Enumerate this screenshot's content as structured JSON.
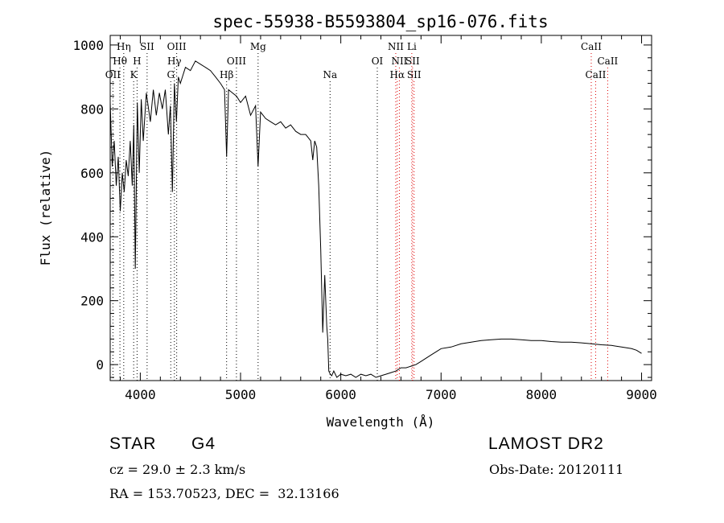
{
  "chart_data": {
    "type": "line",
    "title": "spec-55938-B5593804_sp16-076.fits",
    "xlabel": "Wavelength (Å)",
    "ylabel": "Flux (relative)",
    "xlim": [
      3700,
      9100
    ],
    "ylim": [
      -50,
      1030
    ],
    "x_ticks": [
      4000,
      5000,
      6000,
      7000,
      8000,
      9000
    ],
    "y_ticks": [
      0,
      200,
      400,
      600,
      800,
      1000
    ],
    "x_tick_labels": [
      "4000",
      "5000",
      "6000",
      "7000",
      "8000",
      "9000"
    ],
    "y_tick_labels": [
      "0",
      "200",
      "400",
      "600",
      "800",
      "1000"
    ],
    "grid": false,
    "series": [
      {
        "x": [
          3700,
          3720,
          3740,
          3760,
          3780,
          3800,
          3820,
          3840,
          3860,
          3880,
          3900,
          3920,
          3935,
          3950,
          3970,
          3990,
          4010,
          4030,
          4060,
          4100,
          4130,
          4160,
          4190,
          4220,
          4250,
          4280,
          4300,
          4320,
          4340,
          4360,
          4380,
          4400,
          4450,
          4500,
          4550,
          4600,
          4650,
          4700,
          4750,
          4800,
          4840,
          4861,
          4880,
          4920,
          4960,
          5000,
          5050,
          5100,
          5150,
          5175,
          5200,
          5250,
          5300,
          5350,
          5400,
          5450,
          5500,
          5550,
          5600,
          5650,
          5700,
          5720,
          5740,
          5760,
          5780,
          5800,
          5820,
          5840,
          5860,
          5870,
          5880,
          5895,
          5910,
          5930,
          5960,
          6000,
          6050,
          6100,
          6150,
          6200,
          6250,
          6300,
          6350,
          6400,
          6450,
          6500,
          6550,
          6600,
          6650,
          6700,
          6750,
          6800,
          6850,
          6900,
          6950,
          7000,
          7100,
          7200,
          7300,
          7400,
          7500,
          7600,
          7700,
          7800,
          7900,
          8000,
          8100,
          8200,
          8300,
          8400,
          8500,
          8600,
          8700,
          8800,
          8900,
          8950,
          9000
        ],
        "y": [
          820,
          620,
          700,
          560,
          650,
          480,
          600,
          540,
          640,
          590,
          700,
          560,
          750,
          300,
          820,
          600,
          830,
          700,
          850,
          760,
          860,
          780,
          850,
          800,
          860,
          720,
          810,
          540,
          880,
          760,
          900,
          880,
          930,
          920,
          950,
          940,
          930,
          920,
          900,
          880,
          860,
          650,
          860,
          850,
          840,
          820,
          840,
          780,
          810,
          620,
          790,
          770,
          760,
          750,
          760,
          740,
          750,
          730,
          720,
          720,
          700,
          640,
          700,
          680,
          560,
          360,
          100,
          280,
          120,
          80,
          -20,
          -30,
          -35,
          -20,
          -40,
          -30,
          -35,
          -30,
          -40,
          -30,
          -35,
          -30,
          -40,
          -35,
          -30,
          -25,
          -20,
          -10,
          -10,
          -5,
          0,
          10,
          20,
          30,
          40,
          50,
          55,
          65,
          70,
          75,
          78,
          80,
          80,
          78,
          75,
          75,
          72,
          70,
          70,
          68,
          65,
          62,
          60,
          55,
          50,
          45,
          35
        ]
      }
    ],
    "line_markers": [
      {
        "label": "Hη",
        "x": 3835,
        "row": 0,
        "color": "#000000"
      },
      {
        "label": "SII",
        "x": 4068,
        "row": 0,
        "color": "#000000"
      },
      {
        "label": "OIII",
        "x": 4363,
        "row": 0,
        "color": "#000000"
      },
      {
        "label": "Mg",
        "x": 5175,
        "row": 0,
        "color": "#000000"
      },
      {
        "label": "NII",
        "x": 6548,
        "row": 0,
        "color": "#dd0000"
      },
      {
        "label": "Li",
        "x": 6708,
        "row": 0,
        "color": "#dd0000"
      },
      {
        "label": "CaII",
        "x": 8498,
        "row": 0,
        "color": "#dd0000"
      },
      {
        "label": "Hθ",
        "x": 3797,
        "row": 1,
        "color": "#000000"
      },
      {
        "label": "H",
        "x": 3968,
        "row": 1,
        "color": "#000000"
      },
      {
        "label": "Hγ",
        "x": 4340,
        "row": 1,
        "color": "#000000"
      },
      {
        "label": "OIII",
        "x": 4959,
        "row": 1,
        "color": "#000000"
      },
      {
        "label": "OI",
        "x": 6364,
        "row": 1,
        "color": "#000000"
      },
      {
        "label": "NII",
        "x": 6584,
        "row": 1,
        "color": "#dd0000"
      },
      {
        "label": "SII",
        "x": 6716,
        "row": 1,
        "color": "#dd0000"
      },
      {
        "label": "CaII",
        "x": 8662,
        "row": 1,
        "color": "#dd0000"
      },
      {
        "label": "OII",
        "x": 3727,
        "row": 2,
        "color": "#000000"
      },
      {
        "label": "K",
        "x": 3934,
        "row": 2,
        "color": "#000000"
      },
      {
        "label": "G",
        "x": 4304,
        "row": 2,
        "color": "#000000"
      },
      {
        "label": "Hβ",
        "x": 4861,
        "row": 2,
        "color": "#000000"
      },
      {
        "label": "Na",
        "x": 5893,
        "row": 2,
        "color": "#000000"
      },
      {
        "label": "Hα",
        "x": 6563,
        "row": 2,
        "color": "#dd0000"
      },
      {
        "label": "SII",
        "x": 6731,
        "row": 2,
        "color": "#dd0000"
      },
      {
        "label": "CaII",
        "x": 8542,
        "row": 2,
        "color": "#dd0000"
      }
    ]
  },
  "info": {
    "object_class": "STAR",
    "subclass": "G4",
    "redshift": "cz = 29.0 ± 2.3 km/s",
    "coords": "RA = 153.70523, DEC =  32.13166",
    "survey": "LAMOST DR2",
    "obs_date": "Obs-Date: 20120111"
  }
}
